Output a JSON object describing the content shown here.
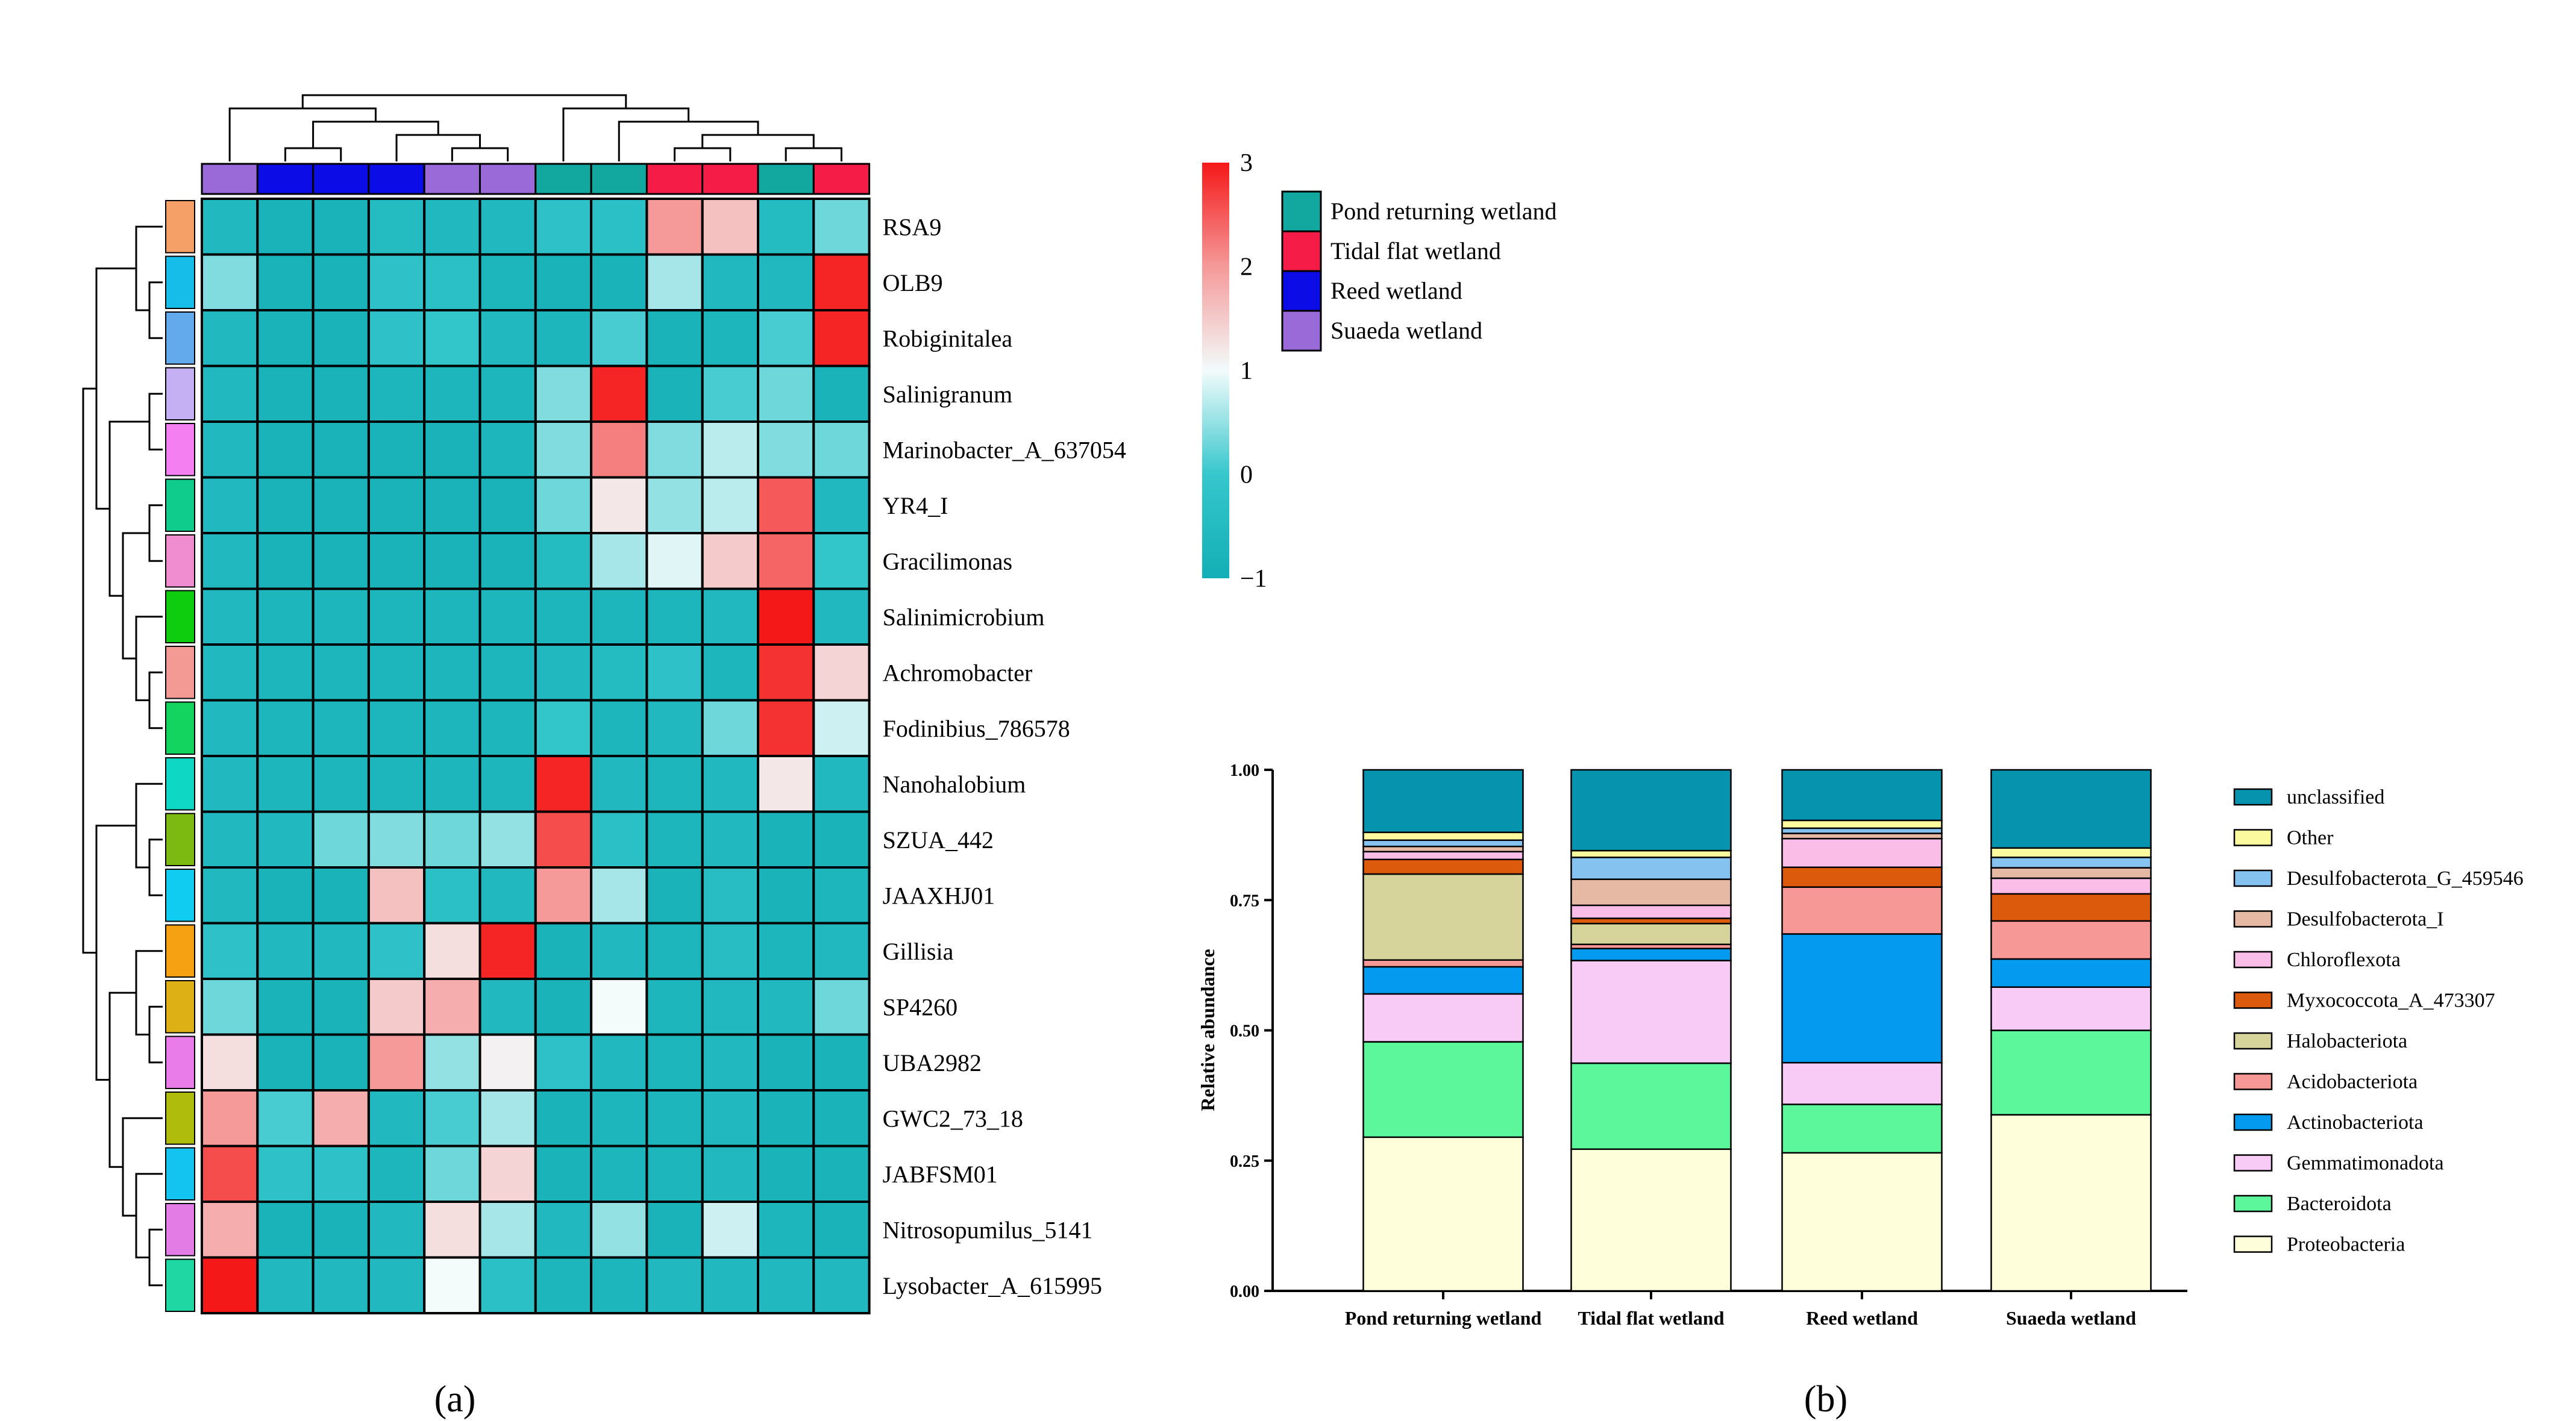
{
  "panel_labels": {
    "a": "(a)",
    "b": "(b)"
  },
  "chart_data": [
    {
      "type": "heatmap",
      "title": "",
      "rows": [
        "RSA9",
        "OLB9",
        "Robiginitalea",
        "Salinigranum",
        "Marinobacter_A_637054",
        "YR4_I",
        "Gracilimonas",
        "Salinimicrobium",
        "Achromobacter",
        "Fodinibius_786578",
        "Nanohalobium",
        "SZUA_442",
        "JAAXHJ01",
        "Gillisia",
        "SP4260",
        "UBA2982",
        "GWC2_73_18",
        "JABFSM01",
        "Nitrosopumilus_5141",
        "Lysobacter_A_615995"
      ],
      "row_colors": [
        "#f4a066",
        "#16bde8",
        "#63aaec",
        "#c4b0f2",
        "#f47ff0",
        "#10cc8c",
        "#f08cd0",
        "#0ecc0e",
        "#f49a95",
        "#14d460",
        "#0ed8c4",
        "#7cba12",
        "#10ccf0",
        "#f5a112",
        "#ddb016",
        "#e97ce8",
        "#b0bc0c",
        "#14c4f0",
        "#e47ce6",
        "#1ed7a2"
      ],
      "col_groups": [
        "Suaeda wetland",
        "Reed wetland",
        "Reed wetland",
        "Reed wetland",
        "Suaeda wetland",
        "Suaeda wetland",
        "Pond returning wetland",
        "Pond returning wetland",
        "Tidal flat wetland",
        "Tidal flat wetland",
        "Pond returning wetland",
        "Tidal flat wetland"
      ],
      "values": [
        [
          -0.6,
          -0.8,
          -0.8,
          -0.5,
          -0.6,
          -0.6,
          -0.2,
          -0.3,
          2.0,
          1.6,
          -0.5,
          0.3
        ],
        [
          0.4,
          -0.8,
          -0.8,
          -0.2,
          -0.3,
          -0.7,
          -0.8,
          -0.8,
          0.6,
          -0.6,
          -0.6,
          2.9
        ],
        [
          -0.6,
          -0.8,
          -0.8,
          -0.2,
          -0.1,
          -0.6,
          -0.7,
          0.1,
          -0.8,
          -0.7,
          0.1,
          2.9
        ],
        [
          -0.6,
          -0.8,
          -0.8,
          -0.7,
          -0.7,
          -0.7,
          0.4,
          2.9,
          -0.8,
          0.1,
          0.3,
          -0.8
        ],
        [
          -0.6,
          -0.8,
          -0.8,
          -0.8,
          -0.8,
          -0.7,
          0.4,
          2.2,
          0.4,
          0.7,
          0.4,
          0.3
        ],
        [
          -0.6,
          -0.8,
          -0.8,
          -0.8,
          -0.8,
          -0.8,
          0.3,
          1.2,
          0.5,
          0.7,
          2.5,
          -0.6
        ],
        [
          -0.6,
          -0.8,
          -0.8,
          -0.8,
          -0.8,
          -0.8,
          -0.5,
          0.6,
          0.9,
          1.5,
          2.4,
          -0.1
        ],
        [
          -0.6,
          -0.7,
          -0.7,
          -0.7,
          -0.7,
          -0.7,
          -0.7,
          -0.7,
          -0.7,
          -0.6,
          3.1,
          -0.6
        ],
        [
          -0.6,
          -0.7,
          -0.7,
          -0.7,
          -0.7,
          -0.7,
          -0.6,
          -0.5,
          -0.2,
          -0.7,
          2.8,
          1.4
        ],
        [
          -0.6,
          -0.7,
          -0.7,
          -0.7,
          -0.7,
          -0.7,
          -0.1,
          -0.7,
          -0.6,
          0.3,
          2.8,
          0.8
        ],
        [
          -0.6,
          -0.7,
          -0.7,
          -0.7,
          -0.7,
          -0.7,
          2.9,
          -0.6,
          -0.7,
          -0.6,
          1.2,
          -0.6
        ],
        [
          -0.6,
          -0.6,
          0.3,
          0.4,
          0.3,
          0.5,
          2.6,
          -0.3,
          -0.7,
          -0.6,
          -0.8,
          -0.8
        ],
        [
          -0.6,
          -0.8,
          -0.8,
          1.6,
          -0.3,
          -0.6,
          2.0,
          0.6,
          -0.8,
          -0.4,
          -0.8,
          -0.7
        ],
        [
          -0.2,
          -0.6,
          -0.6,
          -0.2,
          1.3,
          2.9,
          -0.8,
          -0.6,
          -0.7,
          -0.4,
          -0.7,
          -0.6
        ],
        [
          0.3,
          -0.8,
          -0.8,
          1.5,
          1.8,
          -0.6,
          -0.8,
          1.0,
          -0.7,
          -0.6,
          -0.6,
          0.3
        ],
        [
          1.3,
          -0.8,
          -0.8,
          2.0,
          0.5,
          1.1,
          -0.2,
          -0.6,
          -0.7,
          -0.6,
          -0.8,
          -0.8
        ],
        [
          2.0,
          0.1,
          1.8,
          -0.6,
          0.1,
          0.6,
          -0.8,
          -0.7,
          -0.7,
          -0.6,
          -0.8,
          -0.8
        ],
        [
          2.6,
          -0.2,
          -0.2,
          -0.7,
          0.3,
          1.4,
          -0.8,
          -0.7,
          -0.7,
          -0.6,
          -0.8,
          -0.8
        ],
        [
          1.8,
          -0.8,
          -0.8,
          -0.6,
          1.3,
          0.6,
          -0.6,
          0.5,
          -0.8,
          0.8,
          -0.7,
          -0.8
        ],
        [
          3.0,
          -0.6,
          -0.6,
          -0.6,
          1.0,
          -0.3,
          -0.7,
          -0.7,
          -0.6,
          -0.6,
          -0.6,
          -0.6
        ]
      ],
      "colorbar": {
        "min": -1,
        "max": 3,
        "ticks": [
          "3",
          "2",
          "1",
          "0",
          "−1"
        ]
      },
      "legend": [
        {
          "label": "Pond returning wetland",
          "color": "#12a8a0"
        },
        {
          "label": "Tidal flat wetland",
          "color": "#f51d48"
        },
        {
          "label": "Reed wetland",
          "color": "#0c0ce6"
        },
        {
          "label": "Suaeda wetland",
          "color": "#9a6ad8"
        }
      ],
      "col_tree": [
        [
          10,
          11
        ],
        [
          8,
          9
        ],
        [
          "n1",
          "n0"
        ],
        [
          7,
          "n2"
        ],
        [
          6,
          "n3"
        ],
        [
          1,
          2
        ],
        [
          4,
          5
        ],
        [
          3,
          "n6"
        ],
        [
          "n5",
          "n7"
        ],
        [
          0,
          "n8"
        ],
        [
          "n9",
          "n4"
        ]
      ],
      "row_tree": [
        [
          1,
          2
        ],
        [
          0,
          "n0"
        ],
        [
          3,
          4
        ],
        [
          5,
          6
        ],
        [
          8,
          9
        ],
        [
          7,
          "n4"
        ],
        [
          "n3",
          "n5"
        ],
        [
          "n2",
          "n6"
        ],
        [
          "n1",
          "n7"
        ],
        [
          11,
          12
        ],
        [
          10,
          "n9"
        ],
        [
          14,
          15
        ],
        [
          13,
          "n11"
        ],
        [
          18,
          19
        ],
        [
          17,
          "n13"
        ],
        [
          16,
          "n14"
        ],
        [
          "n12",
          "n15"
        ],
        [
          "n10",
          "n16"
        ],
        [
          "n8",
          "n17"
        ]
      ]
    },
    {
      "type": "bar",
      "stacked": true,
      "title": "",
      "xlabel": "",
      "ylabel": "Relative abundance",
      "ylim": [
        0,
        1
      ],
      "yticks": [
        "0.00",
        "0.25",
        "0.50",
        "0.75",
        "1.00"
      ],
      "categories": [
        "Pond returning wetland",
        "Tidal flat wetland",
        "Reed wetland",
        "Suaeda wetland"
      ],
      "series": [
        {
          "name": "Proteobacteria",
          "color": "#fefedb",
          "values": [
            0.295,
            0.272,
            0.265,
            0.338
          ]
        },
        {
          "name": "Bacteroidota",
          "color": "#5cf79a",
          "values": [
            0.183,
            0.165,
            0.093,
            0.162
          ]
        },
        {
          "name": "Gemmatimonadota",
          "color": "#f7cbf5",
          "values": [
            0.092,
            0.197,
            0.08,
            0.083
          ]
        },
        {
          "name": "Actinobacteriota",
          "color": "#039af0",
          "values": [
            0.052,
            0.023,
            0.247,
            0.054
          ]
        },
        {
          "name": "Acidobacteriota",
          "color": "#f59896",
          "values": [
            0.013,
            0.008,
            0.09,
            0.073
          ]
        },
        {
          "name": "Halobacteriota",
          "color": "#d6d49a",
          "values": [
            0.165,
            0.04,
            0.0,
            0.0
          ]
        },
        {
          "name": "Myxococcota_A_473307",
          "color": "#dc5a0c",
          "values": [
            0.028,
            0.01,
            0.038,
            0.052
          ]
        },
        {
          "name": "Chloroflexota",
          "color": "#f9bde8",
          "values": [
            0.015,
            0.025,
            0.055,
            0.03
          ]
        },
        {
          "name": "Desulfobacterota_I",
          "color": "#e6b9a4",
          "values": [
            0.01,
            0.05,
            0.01,
            0.02
          ]
        },
        {
          "name": "Desulfobacterota_G_459546",
          "color": "#86c2f0",
          "values": [
            0.012,
            0.042,
            0.01,
            0.02
          ]
        },
        {
          "name": "Other",
          "color": "#fcfa9e",
          "values": [
            0.015,
            0.013,
            0.015,
            0.018
          ]
        },
        {
          "name": "unclassified",
          "color": "#0693ad",
          "values": [
            0.12,
            0.155,
            0.097,
            0.15
          ]
        }
      ]
    }
  ]
}
